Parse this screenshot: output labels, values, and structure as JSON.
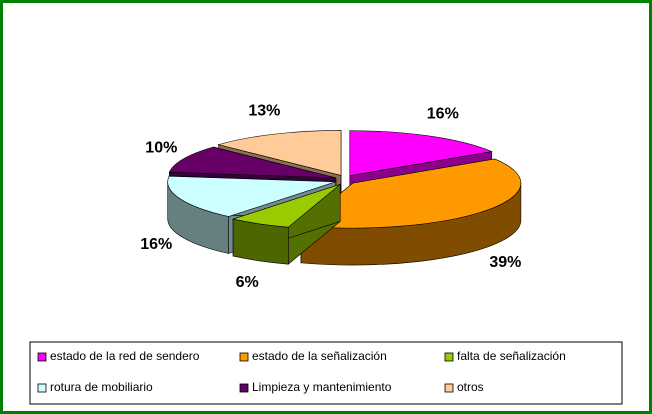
{
  "chart_data": {
    "type": "pie3d",
    "categories": [
      "estado de la red de sendero",
      "estado de la señalización",
      "falta de señalización",
      "rotura de mobiliario",
      "Limpieza y mantenimiento",
      "otros"
    ],
    "values": [
      16,
      39,
      6,
      16,
      10,
      13
    ],
    "value_labels": [
      "16%",
      "39%",
      "6%",
      "16%",
      "10%",
      "13%"
    ],
    "colors": [
      "#ff00ff",
      "#ff9900",
      "#99cc00",
      "#ccffff",
      "#660066",
      "#ffcc99"
    ],
    "legend": "bottom"
  }
}
